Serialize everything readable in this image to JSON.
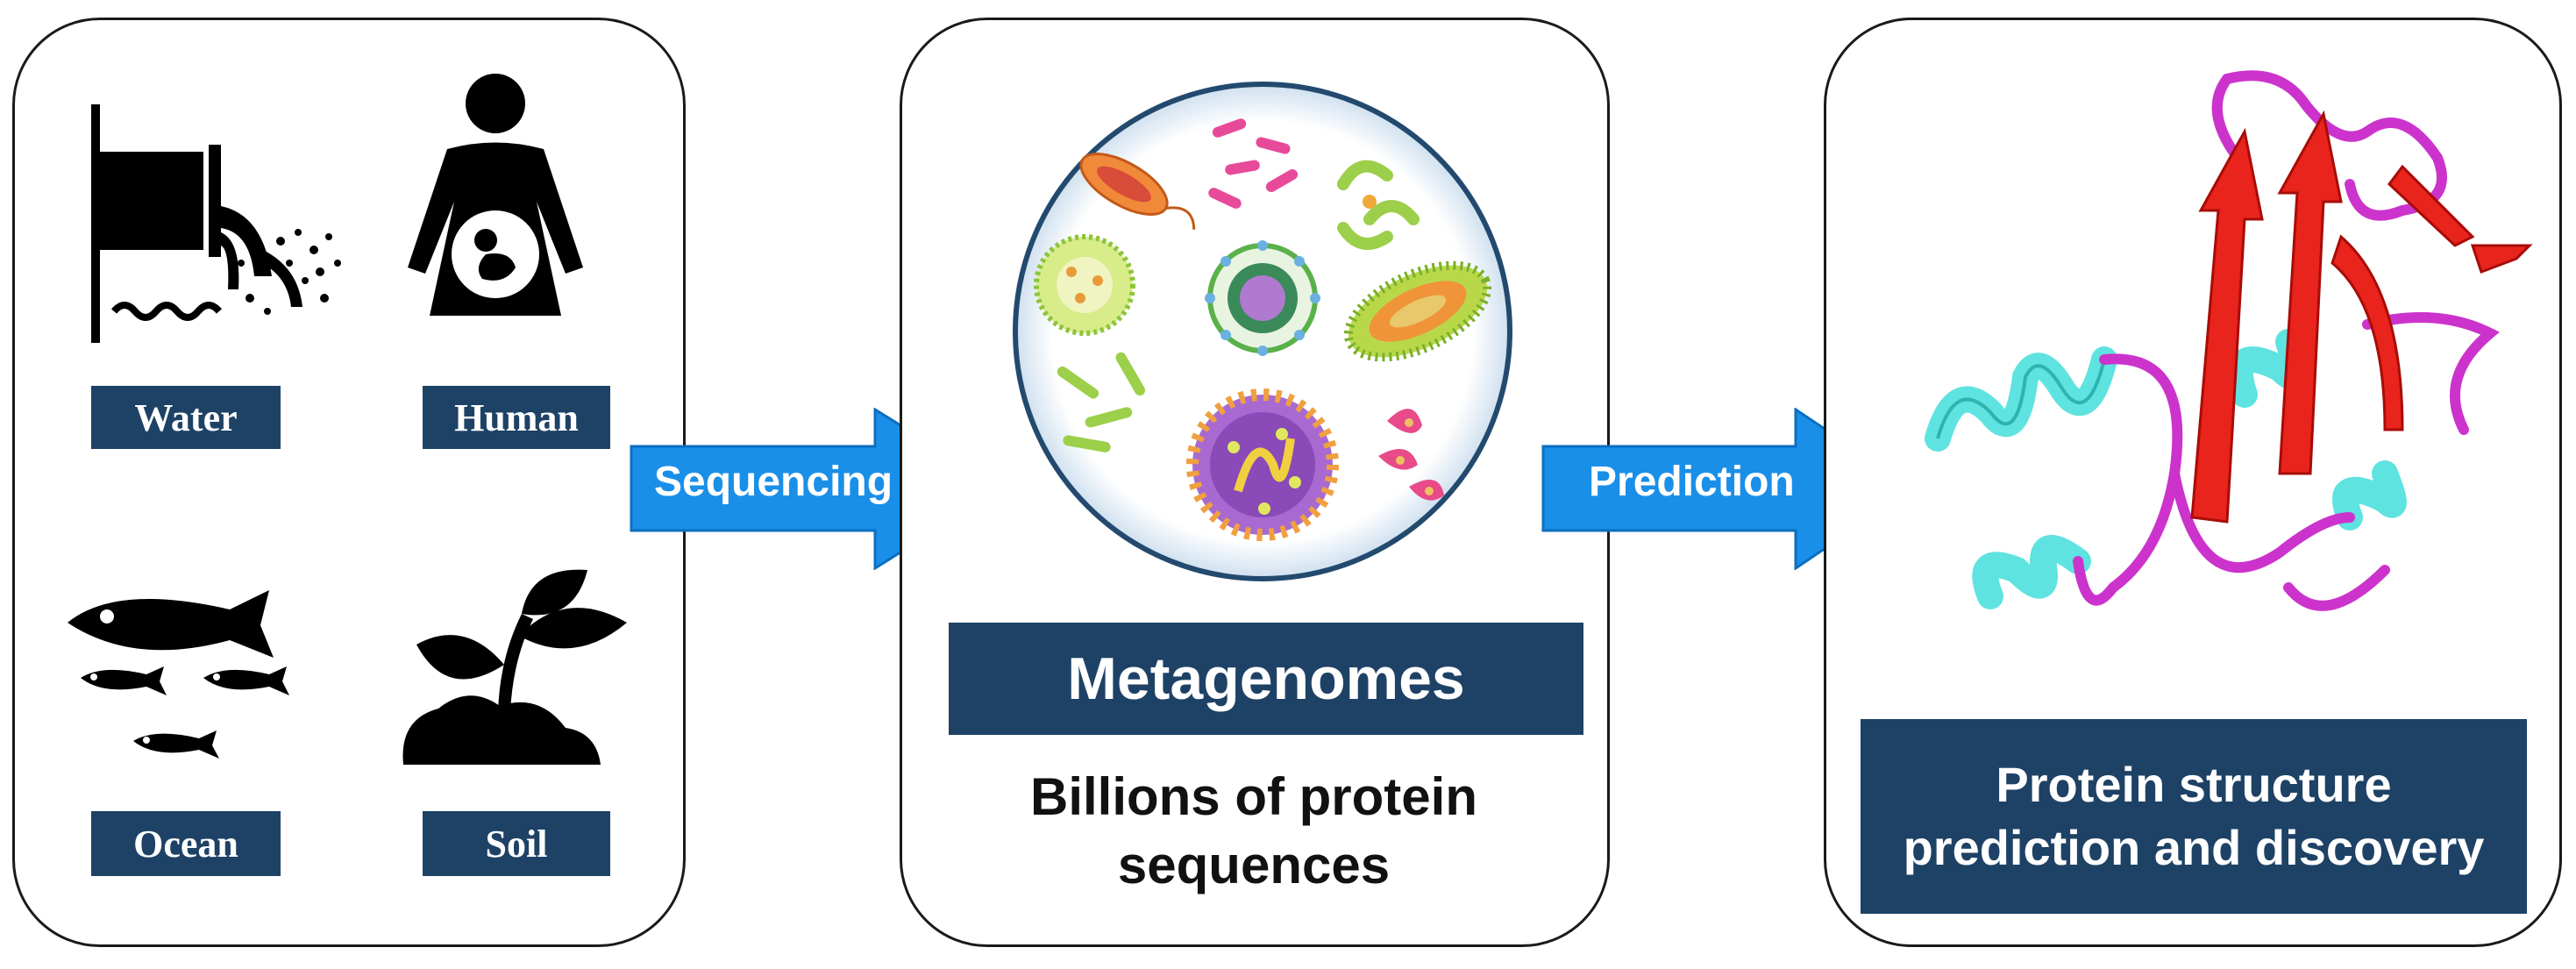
{
  "sources": {
    "water_label": "Water",
    "human_label": "Human",
    "ocean_label": "Ocean",
    "soil_label": "Soil"
  },
  "arrows": {
    "sequencing_label": "Sequencing",
    "prediction_label": "Prediction"
  },
  "metagenomes": {
    "title": "Metagenomes",
    "caption_line1": "Billions of protein",
    "caption_line2": "sequences"
  },
  "prediction": {
    "title_line1": "Protein structure",
    "title_line2": "prediction and discovery"
  },
  "colors": {
    "label_bg": "#1e4266",
    "arrow_fill": "#1a8fe8",
    "helix": "#5fe3e0",
    "sheet": "#e8241c",
    "loop": "#cc33cc"
  },
  "icons": [
    "pipe-outflow-icon",
    "pregnant-woman-icon",
    "fish-icon",
    "plant-sprout-icon",
    "microbes-icon",
    "protein-structure-icon"
  ]
}
